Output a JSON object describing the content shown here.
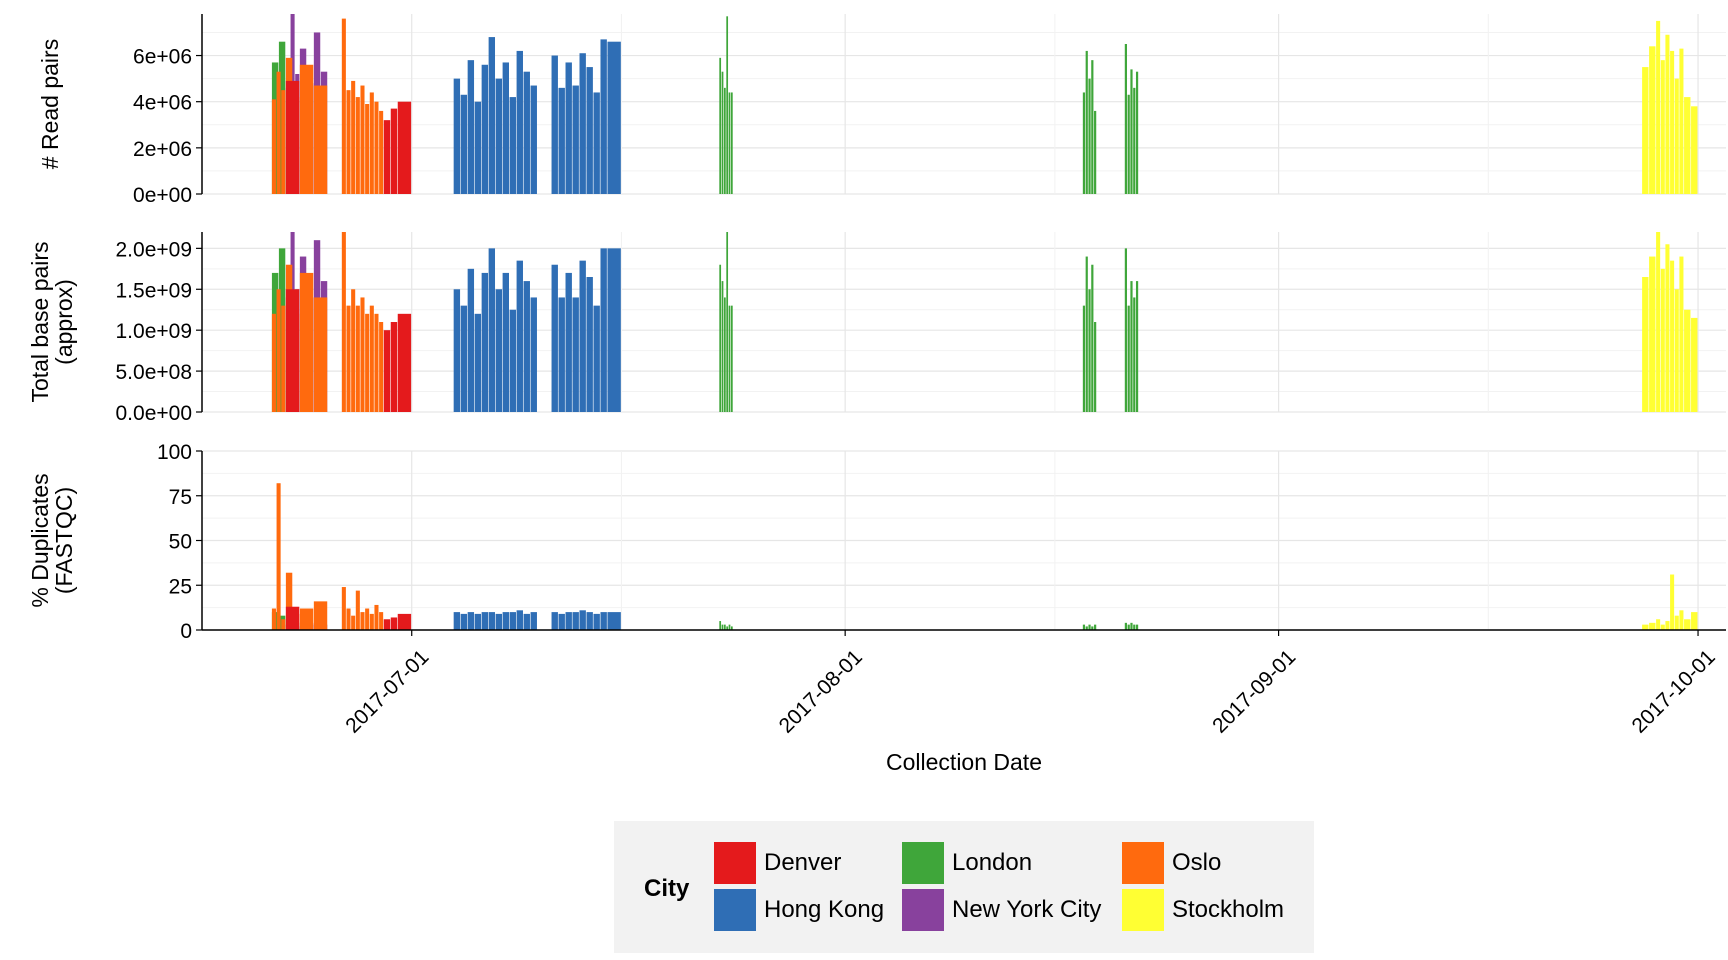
{
  "chart_data": {
    "type": "bar",
    "xlabel": "Collection Date",
    "x_ticks": [
      "2017-07-01",
      "2017-08-01",
      "2017-09-01",
      "2017-10-01"
    ],
    "x_range": [
      "2017-06-16",
      "2017-10-03"
    ],
    "legend": {
      "title": "City",
      "placement": "bottom",
      "entries": [
        {
          "name": "Denver",
          "color": "#e41a1c"
        },
        {
          "name": "Hong Kong",
          "color": "#2f6eb5"
        },
        {
          "name": "London",
          "color": "#3fa63a"
        },
        {
          "name": "New York City",
          "color": "#88419d"
        },
        {
          "name": "Oslo",
          "color": "#ff6a0e"
        },
        {
          "name": "Stockholm",
          "color": "#ffff33"
        }
      ]
    },
    "panels": [
      {
        "ylabel_lines": [
          "# Read pairs"
        ],
        "ylim": [
          0,
          7800000
        ],
        "yticks": [
          0,
          2000000,
          4000000,
          6000000
        ],
        "ytick_labels": [
          "0e+00",
          "2e+06",
          "4e+06",
          "6e+06"
        ],
        "grid": true
      },
      {
        "ylabel_lines": [
          "Total base pairs",
          "(approx)"
        ],
        "ylim": [
          0,
          2200000000
        ],
        "yticks": [
          0,
          500000000,
          1000000000,
          1500000000,
          2000000000
        ],
        "ytick_labels": [
          "0.0e+00",
          "5.0e+08",
          "1.0e+09",
          "1.5e+09",
          "2.0e+09"
        ],
        "grid": true
      },
      {
        "ylabel_lines": [
          "% Duplicates",
          "(FASTQC)"
        ],
        "ylim": [
          0,
          100
        ],
        "yticks": [
          0,
          25,
          50,
          75,
          100
        ],
        "ytick_labels": [
          "0",
          "25",
          "50",
          "75",
          "100"
        ],
        "grid": true
      }
    ],
    "series": [
      {
        "name": "London",
        "color": "#3fa63a",
        "points": [
          {
            "date": "2017-06-21",
            "reads": 5700000,
            "bp": 1700000000,
            "dup": 10
          },
          {
            "date": "2017-06-21",
            "reads": 6600000,
            "bp": 2000000000,
            "dup": 8
          },
          {
            "date": "2017-07-23",
            "reads": 5900000,
            "bp": 1800000000,
            "dup": 5
          },
          {
            "date": "2017-07-23",
            "reads": 5300000,
            "bp": 1600000000,
            "dup": 3
          },
          {
            "date": "2017-07-23",
            "reads": 4600000,
            "bp": 1400000000,
            "dup": 3
          },
          {
            "date": "2017-07-23",
            "reads": 7700000,
            "bp": 2200000000,
            "dup": 2
          },
          {
            "date": "2017-07-23",
            "reads": 4400000,
            "bp": 1300000000,
            "dup": 3
          },
          {
            "date": "2017-07-23",
            "reads": 4400000,
            "bp": 1300000000,
            "dup": 2
          },
          {
            "date": "2017-08-18",
            "reads": 4400000,
            "bp": 1300000000,
            "dup": 3
          },
          {
            "date": "2017-08-18",
            "reads": 6200000,
            "bp": 1900000000,
            "dup": 2
          },
          {
            "date": "2017-08-18",
            "reads": 5000000,
            "bp": 1500000000,
            "dup": 3
          },
          {
            "date": "2017-08-18",
            "reads": 5800000,
            "bp": 1800000000,
            "dup": 2
          },
          {
            "date": "2017-08-18",
            "reads": 3600000,
            "bp": 1100000000,
            "dup": 3
          },
          {
            "date": "2017-08-21",
            "reads": 6500000,
            "bp": 2000000000,
            "dup": 4
          },
          {
            "date": "2017-08-21",
            "reads": 4300000,
            "bp": 1300000000,
            "dup": 3
          },
          {
            "date": "2017-08-21",
            "reads": 5400000,
            "bp": 1600000000,
            "dup": 4
          },
          {
            "date": "2017-08-21",
            "reads": 4600000,
            "bp": 1400000000,
            "dup": 3
          },
          {
            "date": "2017-08-21",
            "reads": 5300000,
            "bp": 1600000000,
            "dup": 3
          }
        ]
      },
      {
        "name": "New York City",
        "color": "#88419d",
        "points": [
          {
            "date": "2017-06-22",
            "reads": 4600000,
            "bp": 1400000000,
            "dup": 3
          },
          {
            "date": "2017-06-22",
            "reads": 7800000,
            "bp": 2200000000,
            "dup": 5
          },
          {
            "date": "2017-06-22",
            "reads": 5200000,
            "bp": 1500000000,
            "dup": 4
          },
          {
            "date": "2017-06-23",
            "reads": 6300000,
            "bp": 1900000000,
            "dup": 2
          },
          {
            "date": "2017-06-23",
            "reads": 4800000,
            "bp": 1400000000,
            "dup": 3
          },
          {
            "date": "2017-06-24",
            "reads": 7000000,
            "bp": 2100000000,
            "dup": 4
          },
          {
            "date": "2017-06-24",
            "reads": 5300000,
            "bp": 1600000000,
            "dup": 3
          }
        ]
      },
      {
        "name": "Oslo",
        "color": "#ff6a0e",
        "points": [
          {
            "date": "2017-06-21",
            "reads": 4100000,
            "bp": 1200000000,
            "dup": 12
          },
          {
            "date": "2017-06-21",
            "reads": 5300000,
            "bp": 1500000000,
            "dup": 82
          },
          {
            "date": "2017-06-21",
            "reads": 4500000,
            "bp": 1300000000,
            "dup": 6
          },
          {
            "date": "2017-06-22",
            "reads": 5900000,
            "bp": 1800000000,
            "dup": 32
          },
          {
            "date": "2017-06-22",
            "reads": 4200000,
            "bp": 1200000000,
            "dup": 9
          },
          {
            "date": "2017-06-23",
            "reads": 5600000,
            "bp": 1700000000,
            "dup": 12
          },
          {
            "date": "2017-06-24",
            "reads": 4700000,
            "bp": 1400000000,
            "dup": 16
          },
          {
            "date": "2017-06-26",
            "reads": 7600000,
            "bp": 2200000000,
            "dup": 24
          },
          {
            "date": "2017-06-26",
            "reads": 4500000,
            "bp": 1300000000,
            "dup": 12
          },
          {
            "date": "2017-06-26",
            "reads": 4900000,
            "bp": 1500000000,
            "dup": 8
          },
          {
            "date": "2017-06-27",
            "reads": 4200000,
            "bp": 1300000000,
            "dup": 22
          },
          {
            "date": "2017-06-27",
            "reads": 4700000,
            "bp": 1400000000,
            "dup": 10
          },
          {
            "date": "2017-06-27",
            "reads": 3900000,
            "bp": 1200000000,
            "dup": 12
          },
          {
            "date": "2017-06-28",
            "reads": 4400000,
            "bp": 1300000000,
            "dup": 9
          },
          {
            "date": "2017-06-28",
            "reads": 4000000,
            "bp": 1200000000,
            "dup": 14
          },
          {
            "date": "2017-06-28",
            "reads": 3600000,
            "bp": 1100000000,
            "dup": 10
          }
        ]
      },
      {
        "name": "Denver",
        "color": "#e41a1c",
        "points": [
          {
            "date": "2017-06-22",
            "reads": 4900000,
            "bp": 1500000000,
            "dup": 13
          },
          {
            "date": "2017-06-29",
            "reads": 3200000,
            "bp": 1000000000,
            "dup": 6
          },
          {
            "date": "2017-06-29",
            "reads": 3700000,
            "bp": 1100000000,
            "dup": 7
          },
          {
            "date": "2017-06-30",
            "reads": 4000000,
            "bp": 1200000000,
            "dup": 9
          }
        ]
      },
      {
        "name": "Hong Kong",
        "color": "#2f6eb5",
        "points": [
          {
            "date": "2017-07-04",
            "reads": 5000000,
            "bp": 1500000000,
            "dup": 10
          },
          {
            "date": "2017-07-04",
            "reads": 4300000,
            "bp": 1300000000,
            "dup": 9
          },
          {
            "date": "2017-07-05",
            "reads": 5800000,
            "bp": 1750000000,
            "dup": 10
          },
          {
            "date": "2017-07-05",
            "reads": 4000000,
            "bp": 1200000000,
            "dup": 9
          },
          {
            "date": "2017-07-06",
            "reads": 5600000,
            "bp": 1700000000,
            "dup": 10
          },
          {
            "date": "2017-07-06",
            "reads": 6800000,
            "bp": 2000000000,
            "dup": 10
          },
          {
            "date": "2017-07-07",
            "reads": 5000000,
            "bp": 1500000000,
            "dup": 9
          },
          {
            "date": "2017-07-07",
            "reads": 5700000,
            "bp": 1700000000,
            "dup": 10
          },
          {
            "date": "2017-07-08",
            "reads": 4200000,
            "bp": 1250000000,
            "dup": 10
          },
          {
            "date": "2017-07-08",
            "reads": 6200000,
            "bp": 1850000000,
            "dup": 11
          },
          {
            "date": "2017-07-09",
            "reads": 5300000,
            "bp": 1600000000,
            "dup": 9
          },
          {
            "date": "2017-07-09",
            "reads": 4700000,
            "bp": 1400000000,
            "dup": 10
          },
          {
            "date": "2017-07-11",
            "reads": 6000000,
            "bp": 1800000000,
            "dup": 10
          },
          {
            "date": "2017-07-11",
            "reads": 4600000,
            "bp": 1400000000,
            "dup": 9
          },
          {
            "date": "2017-07-12",
            "reads": 5700000,
            "bp": 1700000000,
            "dup": 10
          },
          {
            "date": "2017-07-12",
            "reads": 4700000,
            "bp": 1400000000,
            "dup": 10
          },
          {
            "date": "2017-07-13",
            "reads": 6100000,
            "bp": 1850000000,
            "dup": 11
          },
          {
            "date": "2017-07-13",
            "reads": 5500000,
            "bp": 1650000000,
            "dup": 10
          },
          {
            "date": "2017-07-14",
            "reads": 4400000,
            "bp": 1300000000,
            "dup": 9
          },
          {
            "date": "2017-07-14",
            "reads": 6700000,
            "bp": 2000000000,
            "dup": 10
          },
          {
            "date": "2017-07-15",
            "reads": 6600000,
            "bp": 2000000000,
            "dup": 10
          }
        ]
      },
      {
        "name": "Stockholm",
        "color": "#ffff33",
        "points": [
          {
            "date": "2017-09-27",
            "reads": 5500000,
            "bp": 1650000000,
            "dup": 3
          },
          {
            "date": "2017-09-27",
            "reads": 6400000,
            "bp": 1900000000,
            "dup": 4
          },
          {
            "date": "2017-09-28",
            "reads": 7500000,
            "bp": 2200000000,
            "dup": 6
          },
          {
            "date": "2017-09-28",
            "reads": 5800000,
            "bp": 1750000000,
            "dup": 3
          },
          {
            "date": "2017-09-28",
            "reads": 6900000,
            "bp": 2050000000,
            "dup": 5
          },
          {
            "date": "2017-09-29",
            "reads": 6200000,
            "bp": 1850000000,
            "dup": 31
          },
          {
            "date": "2017-09-29",
            "reads": 5000000,
            "bp": 1500000000,
            "dup": 8
          },
          {
            "date": "2017-09-29",
            "reads": 6300000,
            "bp": 1900000000,
            "dup": 11
          },
          {
            "date": "2017-09-30",
            "reads": 4200000,
            "bp": 1250000000,
            "dup": 6
          },
          {
            "date": "2017-09-30",
            "reads": 3800000,
            "bp": 1150000000,
            "dup": 10
          }
        ]
      }
    ]
  }
}
